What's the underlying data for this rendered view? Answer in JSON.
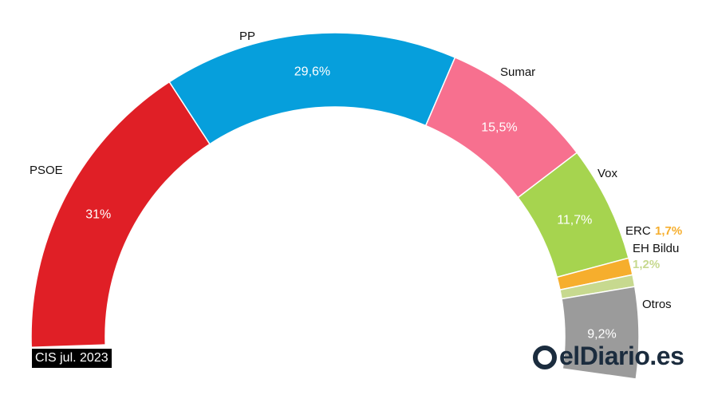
{
  "source": "CIS jul. 2023",
  "brand": "elDiario.es",
  "chart_data": {
    "type": "pie",
    "variant": "half-donut",
    "title": "",
    "series": [
      {
        "name": "PSOE",
        "value": 31,
        "value_label": "31%",
        "color": "#e01f26"
      },
      {
        "name": "PP",
        "value": 29.6,
        "value_label": "29,6%",
        "color": "#069fdc"
      },
      {
        "name": "Sumar",
        "value": 15.5,
        "value_label": "15,5%",
        "color": "#f7708f"
      },
      {
        "name": "Vox",
        "value": 11.7,
        "value_label": "11,7%",
        "color": "#a6d44f"
      },
      {
        "name": "ERC",
        "value": 1.7,
        "value_label": "1,7%",
        "color": "#f6ae2d"
      },
      {
        "name": "EH Bildu",
        "value": 1.2,
        "value_label": "1,2%",
        "color": "#c7d98f"
      },
      {
        "name": "Otros",
        "value": 9.2,
        "value_label": "9,2%",
        "color": "#9b9b9b"
      }
    ]
  }
}
